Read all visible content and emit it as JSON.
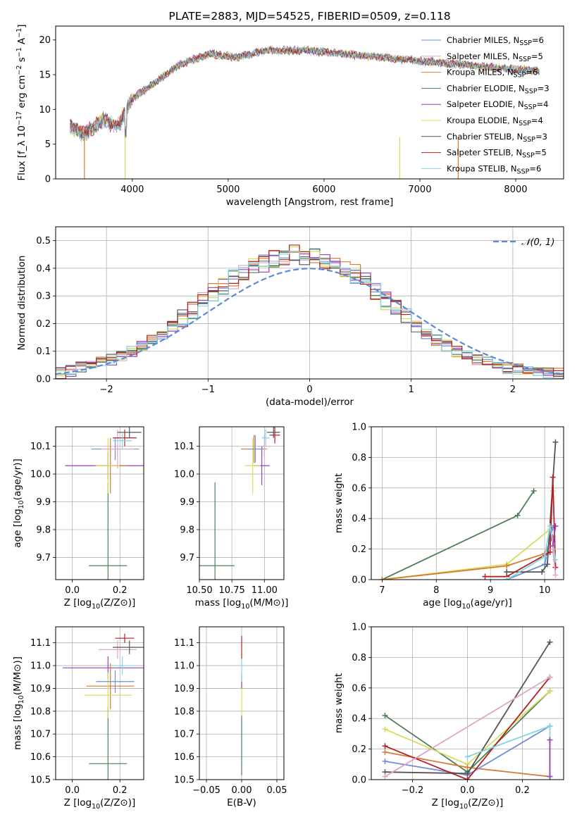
{
  "chart_data": [
    {
      "type": "line",
      "id": "spectrum",
      "title": "PLATE=2883, MJD=54525, FIBERID=0509, z=0.118",
      "xlabel": "wavelength [Angstrom, rest frame]",
      "ylabel": "Flux [f_λ 10^-17 erg cm^-2 s^-1 A^-1]",
      "xlim": [
        3200,
        8500
      ],
      "ylim": [
        0,
        22
      ],
      "xticks": [
        4000,
        5000,
        6000,
        7000,
        8000
      ],
      "yticks": [
        0,
        5,
        10,
        15,
        20
      ],
      "spectrum_trend": {
        "x": [
          3350,
          3500,
          3700,
          3850,
          4000,
          4200,
          4500,
          4800,
          5100,
          5400,
          5800,
          6200,
          6600,
          7000,
          7400,
          7800,
          8250
        ],
        "y": [
          7.5,
          6.5,
          8.5,
          7.5,
          11.5,
          13.5,
          16.5,
          18.0,
          17.5,
          18.5,
          18.5,
          18.0,
          17.5,
          17.0,
          16.5,
          16.0,
          15.5
        ]
      },
      "legend_position": "right",
      "series": [
        {
          "name": "Chabrier MILES, N_SSP=6",
          "color": "#6f8fd9"
        },
        {
          "name": "Salpeter MILES, N_SSP=5",
          "color": "#e0a6c8"
        },
        {
          "name": "Kroupa MILES, N_SSP=6",
          "color": "#d97a30"
        },
        {
          "name": "Chabrier ELODIE, N_SSP=3",
          "color": "#4f7f5a"
        },
        {
          "name": "Salpeter ELODIE, N_SSP=4",
          "color": "#9b3fc0"
        },
        {
          "name": "Kroupa ELODIE, N_SSP=4",
          "color": "#d8dc5e"
        },
        {
          "name": "Chabrier STELIB, N_SSP=3",
          "color": "#555555"
        },
        {
          "name": "Salpeter STELIB, N_SSP=5",
          "color": "#b52020"
        },
        {
          "name": "Kroupa STELIB, N_SSP=6",
          "color": "#84d6e3"
        }
      ]
    },
    {
      "type": "histogram",
      "id": "residuals",
      "xlabel": "(data-model)/error",
      "ylabel": "Normed distribution",
      "xlim": [
        -2.5,
        2.5
      ],
      "ylim": [
        0,
        0.55
      ],
      "xticks": [
        -2,
        -1,
        0,
        1,
        2
      ],
      "yticks": [
        0.0,
        0.1,
        0.2,
        0.3,
        0.4,
        0.5
      ],
      "grid": true,
      "legend": "𝒩(0, 1)",
      "legend_position": "top-right",
      "bin_edges_start": -2.5,
      "bin_width": 0.1,
      "base_values": [
        0.02,
        0.03,
        0.04,
        0.05,
        0.06,
        0.07,
        0.085,
        0.1,
        0.12,
        0.14,
        0.16,
        0.19,
        0.22,
        0.25,
        0.28,
        0.31,
        0.34,
        0.36,
        0.38,
        0.4,
        0.42,
        0.43,
        0.44,
        0.45,
        0.44,
        0.44,
        0.43,
        0.42,
        0.4,
        0.38,
        0.35,
        0.32,
        0.28,
        0.25,
        0.22,
        0.19,
        0.16,
        0.14,
        0.12,
        0.1,
        0.085,
        0.07,
        0.06,
        0.05,
        0.04,
        0.035,
        0.03,
        0.025,
        0.02,
        0.018
      ]
    },
    {
      "type": "scatter",
      "id": "age-vs-Z",
      "xlabel": "Z [log10(Z/Z⊙)]",
      "ylabel": "age [log10(age/yr)]",
      "xlim": [
        -0.07,
        0.3
      ],
      "ylim": [
        9.62,
        10.17
      ],
      "xticks": [
        0.0,
        0.2
      ],
      "yticks": [
        9.7,
        9.8,
        9.9,
        10.0,
        10.1
      ],
      "points": [
        {
          "x": 0.15,
          "y": 9.67,
          "xerr": 0.08,
          "yerr": 0.3,
          "color": "#4f7f5a"
        },
        {
          "x": 0.15,
          "y": 10.03,
          "xerr": 0.18,
          "yerr": 0.05,
          "color": "#9b3fc0"
        },
        {
          "x": 0.16,
          "y": 10.03,
          "xerr": 0.07,
          "yerr": 0.1,
          "color": "#d97a30"
        },
        {
          "x": 0.15,
          "y": 10.03,
          "xerr": 0.05,
          "yerr": 0.1,
          "color": "#d8dc5e"
        },
        {
          "x": 0.18,
          "y": 10.09,
          "xerr": 0.1,
          "yerr": 0.04,
          "color": "#6f8fd9"
        },
        {
          "x": 0.19,
          "y": 10.09,
          "xerr": 0.07,
          "yerr": 0.07,
          "color": "#e0a6c8"
        },
        {
          "x": 0.22,
          "y": 10.13,
          "xerr": 0.05,
          "yerr": 0.03,
          "color": "#b52020"
        },
        {
          "x": 0.24,
          "y": 10.15,
          "xerr": 0.05,
          "yerr": 0.02,
          "color": "#555555"
        },
        {
          "x": 0.21,
          "y": 10.12,
          "xerr": 0.04,
          "yerr": 0.03,
          "color": "#84d6e3"
        }
      ]
    },
    {
      "type": "scatter",
      "id": "age-vs-mass",
      "xlabel": "mass [log10(M/M⊙)]",
      "ylabel": "",
      "xlim": [
        10.5,
        11.15
      ],
      "ylim": [
        9.62,
        10.17
      ],
      "xticks": [
        10.5,
        10.75,
        11.0
      ],
      "xticklabels": [
        "10.50",
        "10.75",
        "11.00"
      ],
      "yticks": [
        9.7,
        9.8,
        9.9,
        10.0,
        10.1
      ],
      "points": [
        {
          "x": 10.62,
          "y": 9.67,
          "xerr": 0.15,
          "yerr": 0.3,
          "color": "#4f7f5a"
        },
        {
          "x": 10.98,
          "y": 10.03,
          "xerr": 0.06,
          "yerr": 0.07,
          "color": "#9b3fc0"
        },
        {
          "x": 10.91,
          "y": 10.03,
          "xerr": 0.06,
          "yerr": 0.1,
          "color": "#d8dc5e"
        },
        {
          "x": 10.92,
          "y": 10.09,
          "xerr": 0.1,
          "yerr": 0.05,
          "color": "#d97a30"
        },
        {
          "x": 10.93,
          "y": 10.09,
          "xerr": 0.06,
          "yerr": 0.05,
          "color": "#6f8fd9"
        },
        {
          "x": 11.0,
          "y": 10.1,
          "xerr": 0.05,
          "yerr": 0.04,
          "color": "#e0a6c8"
        },
        {
          "x": 11.08,
          "y": 10.14,
          "xerr": 0.04,
          "yerr": 0.03,
          "color": "#b52020"
        },
        {
          "x": 11.07,
          "y": 10.15,
          "xerr": 0.05,
          "yerr": 0.02,
          "color": "#555555"
        },
        {
          "x": 11.01,
          "y": 10.13,
          "xerr": 0.03,
          "yerr": 0.03,
          "color": "#84d6e3"
        }
      ]
    },
    {
      "type": "line",
      "id": "mass-weight-vs-age",
      "xlabel": "age [log10(age/yr)]",
      "ylabel": "mass weight",
      "xlim": [
        6.8,
        10.35
      ],
      "ylim": [
        0,
        1
      ],
      "xticks": [
        7,
        8,
        9,
        10
      ],
      "yticks": [
        0.0,
        0.2,
        0.4,
        0.6,
        0.8,
        1.0
      ],
      "grid": true,
      "series": [
        {
          "color": "#4f7f5a",
          "x": [
            7.0,
            9.5,
            9.8
          ],
          "y": [
            0.0,
            0.42,
            0.58
          ]
        },
        {
          "color": "#d8dc5e",
          "x": [
            7.0,
            9.3,
            10.1,
            10.15
          ],
          "y": [
            0.0,
            0.1,
            0.33,
            0.58
          ]
        },
        {
          "color": "#d97a30",
          "x": [
            7.0,
            9.3,
            10.0,
            10.15
          ],
          "y": [
            0.0,
            0.09,
            0.17,
            0.28
          ]
        },
        {
          "color": "#6f8fd9",
          "x": [
            9.3,
            10.0,
            10.1,
            10.15
          ],
          "y": [
            0.0,
            0.1,
            0.27,
            0.34
          ]
        },
        {
          "color": "#555555",
          "x": [
            9.3,
            9.95,
            10.05,
            10.2
          ],
          "y": [
            0.05,
            0.05,
            0.1,
            0.9
          ]
        },
        {
          "color": "#b52020",
          "x": [
            8.9,
            9.3,
            10.1,
            10.15,
            10.2
          ],
          "y": [
            0.02,
            0.02,
            0.18,
            0.67,
            0.08
          ]
        },
        {
          "color": "#84d6e3",
          "x": [
            9.3,
            10.0,
            10.1,
            10.2
          ],
          "y": [
            0.0,
            0.15,
            0.35,
            0.13
          ]
        },
        {
          "color": "#9b3fc0",
          "x": [
            10.15,
            10.2
          ],
          "y": [
            0.22,
            0.35
          ]
        },
        {
          "color": "#e0a6c8",
          "x": [
            10.15,
            10.2
          ],
          "y": [
            0.2,
            0.03
          ]
        }
      ]
    },
    {
      "type": "scatter",
      "id": "mass-vs-Z",
      "xlabel": "Z [log10(Z/Z⊙)]",
      "ylabel": "mass [log10(M/M⊙)]",
      "xlim": [
        -0.07,
        0.3
      ],
      "ylim": [
        10.5,
        11.17
      ],
      "xticks": [
        0.0,
        0.2
      ],
      "yticks": [
        10.5,
        10.6,
        10.7,
        10.8,
        10.9,
        11.0,
        11.1
      ],
      "points": [
        {
          "x": 0.15,
          "y": 10.57,
          "xerr": 0.08,
          "yerr": 0.25,
          "color": "#4f7f5a"
        },
        {
          "x": 0.15,
          "y": 10.99,
          "xerr": 0.19,
          "yerr": 0.05,
          "color": "#9b3fc0"
        },
        {
          "x": 0.16,
          "y": 10.91,
          "xerr": 0.1,
          "yerr": 0.1,
          "color": "#d97a30"
        },
        {
          "x": 0.15,
          "y": 10.87,
          "xerr": 0.1,
          "yerr": 0.1,
          "color": "#d8dc5e"
        },
        {
          "x": 0.18,
          "y": 10.93,
          "xerr": 0.08,
          "yerr": 0.05,
          "color": "#6f8fd9"
        },
        {
          "x": 0.19,
          "y": 11.07,
          "xerr": 0.08,
          "yerr": 0.04,
          "color": "#e0a6c8"
        },
        {
          "x": 0.22,
          "y": 11.12,
          "xerr": 0.04,
          "yerr": 0.02,
          "color": "#b52020"
        },
        {
          "x": 0.24,
          "y": 11.08,
          "xerr": 0.07,
          "yerr": 0.03,
          "color": "#555555"
        },
        {
          "x": 0.21,
          "y": 11.0,
          "xerr": 0.05,
          "yerr": 0.04,
          "color": "#84d6e3"
        }
      ]
    },
    {
      "type": "scatter",
      "id": "mass-vs-EBV",
      "xlabel": "E(B-V)",
      "ylabel": "",
      "xlim": [
        -0.06,
        0.06
      ],
      "ylim": [
        10.5,
        11.17
      ],
      "xticks": [
        -0.05,
        0.0,
        0.05
      ],
      "xticklabels": [
        "−0.05",
        "0.00",
        "0.05"
      ],
      "yticks": [
        10.5,
        10.6,
        10.7,
        10.8,
        10.9,
        11.0,
        11.1
      ],
      "points": [
        {
          "x": 0.0,
          "y": 10.65,
          "xerr": 0,
          "yerr": 0.13,
          "color": "#4f7f5a"
        },
        {
          "x": 0.0,
          "y": 10.85,
          "xerr": 0,
          "yerr": 0.07,
          "color": "#d8dc5e"
        },
        {
          "x": 0.0,
          "y": 10.93,
          "xerr": 0,
          "yerr": 0.03,
          "color": "#9b3fc0"
        },
        {
          "x": 0.0,
          "y": 10.98,
          "xerr": 0,
          "yerr": 0.05,
          "color": "#84d6e3"
        },
        {
          "x": 0.0,
          "y": 11.08,
          "xerr": 0,
          "yerr": 0.05,
          "color": "#b52020"
        }
      ]
    },
    {
      "type": "line",
      "id": "mass-weight-vs-Z",
      "xlabel": "Z [log10(Z/Z⊙)]",
      "ylabel": "mass weight",
      "xlim": [
        -0.35,
        0.35
      ],
      "ylim": [
        0,
        1
      ],
      "xticks": [
        -0.2,
        0.0,
        0.2
      ],
      "xticklabels": [
        "−0.2",
        "0.0",
        "0.2"
      ],
      "yticks": [
        0.0,
        0.2,
        0.4,
        0.6,
        0.8,
        1.0
      ],
      "grid": true,
      "series": [
        {
          "color": "#4f7f5a",
          "x": [
            -0.3,
            0.0,
            0.3
          ],
          "y": [
            0.42,
            0.05,
            0.58
          ]
        },
        {
          "color": "#d8dc5e",
          "x": [
            -0.3,
            0.0,
            0.3
          ],
          "y": [
            0.33,
            0.1,
            0.58
          ]
        },
        {
          "color": "#d97a30",
          "x": [
            -0.3,
            0.0,
            0.3
          ],
          "y": [
            0.18,
            0.08,
            0.02
          ]
        },
        {
          "color": "#6f8fd9",
          "x": [
            -0.3,
            0.0,
            0.3
          ],
          "y": [
            0.12,
            0.03,
            0.35
          ]
        },
        {
          "color": "#555555",
          "x": [
            -0.3,
            0.0,
            0.3
          ],
          "y": [
            0.05,
            0.04,
            0.9
          ]
        },
        {
          "color": "#b52020",
          "x": [
            -0.3,
            0.0,
            0.3
          ],
          "y": [
            0.22,
            0.0,
            0.67
          ]
        },
        {
          "color": "#84d6e3",
          "x": [
            0.0,
            0.3,
            0.3
          ],
          "y": [
            0.15,
            0.35,
            0.02
          ]
        },
        {
          "color": "#e0a6c8",
          "x": [
            -0.3,
            0.3
          ],
          "y": [
            0.02,
            0.67
          ]
        },
        {
          "color": "#9b3fc0",
          "x": [
            0.3,
            0.3
          ],
          "y": [
            0.02,
            0.26
          ]
        }
      ]
    }
  ]
}
